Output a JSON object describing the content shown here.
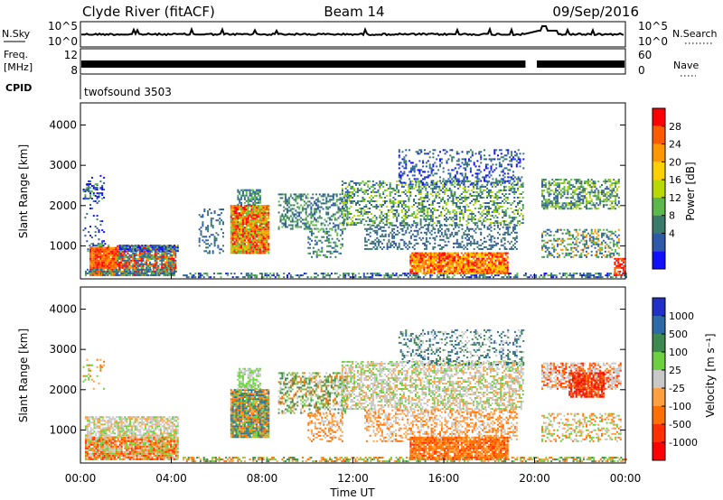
{
  "header": {
    "station": "Clyde River (fitACF)",
    "beam": "Beam 14",
    "date": "09/Sep/2016"
  },
  "top_panels": {
    "nsky_label": "N.Sky",
    "nsky_ticks": [
      "10^5",
      "10^0"
    ],
    "nsearch_label": "N.Search",
    "nsearch_ticks": [
      "10^5",
      "10^0"
    ],
    "freq_label": "Freq.",
    "freq_unit": "[MHz]",
    "freq_ticks": [
      "12",
      "8"
    ],
    "nave_label": "Nave",
    "nave_ticks": [
      "60",
      "0"
    ],
    "cpid_label": "CPID",
    "cpid_value": "twofsound 3503"
  },
  "chart_data": [
    {
      "type": "heatmap",
      "title": "",
      "xlabel": "",
      "ylabel": "Slant Range [km]",
      "x_range_hours": [
        0,
        24
      ],
      "ylim": [
        180,
        4550
      ],
      "yticks": [
        1000,
        2000,
        3000,
        4000
      ],
      "colorbar": {
        "label": "Power [dB]",
        "ticks": [
          "28",
          "24",
          "20",
          "16",
          "12",
          "8",
          "4"
        ],
        "colors": [
          "#ff0000",
          "#ff5a00",
          "#ff9800",
          "#ffd000",
          "#b8d800",
          "#5cb84a",
          "#3a7a6a",
          "#2c5aa8",
          "#1010ff"
        ]
      }
    },
    {
      "type": "heatmap",
      "title": "",
      "xlabel": "Time UT",
      "ylabel": "Slant Range [km]",
      "x_range_hours": [
        0,
        24
      ],
      "xticks": [
        "00:00",
        "04:00",
        "08:00",
        "12:00",
        "16:00",
        "20:00",
        "00:00"
      ],
      "ylim": [
        180,
        4550
      ],
      "yticks": [
        1000,
        2000,
        3000,
        4000
      ],
      "colorbar": {
        "label": "Velocity [m s⁻¹]",
        "ticks": [
          "1000",
          "500",
          "100",
          "25",
          "-25",
          "-100",
          "-500",
          "-1000"
        ],
        "colors": [
          "#2030c8",
          "#2d6aa8",
          "#3c8a50",
          "#6cd040",
          "#c8c8c8",
          "#ffa040",
          "#ff7000",
          "#ff3000",
          "#ff0000"
        ]
      }
    }
  ],
  "scatter_patches": {
    "power": [
      {
        "t": [
          0.1,
          1.0
        ],
        "r": [
          1050,
          2750
        ],
        "dens": 0.1,
        "c": [
          "#2c5aa8",
          "#1010ff",
          "#3a7a6a"
        ]
      },
      {
        "t": [
          0.1,
          1.0
        ],
        "r": [
          2150,
          2550
        ],
        "dens": 0.35,
        "c": [
          "#2c5aa8",
          "#5cb84a",
          "#1010ff"
        ]
      },
      {
        "t": [
          0.3,
          1.2
        ],
        "r": [
          850,
          1050
        ],
        "dens": 0.55,
        "c": [
          "#2c5aa8",
          "#1010ff",
          "#5cb84a"
        ]
      },
      {
        "t": [
          0.4,
          1.6
        ],
        "r": [
          250,
          950
        ],
        "dens": 0.95,
        "c": [
          "#ff0000",
          "#ff5a00",
          "#ff9800",
          "#ff5a00"
        ]
      },
      {
        "t": [
          1.6,
          4.2
        ],
        "r": [
          250,
          1000
        ],
        "dens": 0.85,
        "c": [
          "#ff9800",
          "#ff5a00",
          "#5cb84a",
          "#3a7a6a",
          "#ff0000",
          "#2c5aa8"
        ]
      },
      {
        "t": [
          1.7,
          4.3
        ],
        "r": [
          850,
          1000
        ],
        "dens": 0.75,
        "c": [
          "#2c5aa8",
          "#5cb84a",
          "#1010ff"
        ]
      },
      {
        "t": [
          0.2,
          4.2
        ],
        "r": [
          250,
          420
        ],
        "dens": 0.55,
        "c": [
          "#5cb84a",
          "#3a7a6a",
          "#2c5aa8"
        ]
      },
      {
        "t": [
          6.6,
          8.3
        ],
        "r": [
          800,
          2000
        ],
        "dens": 0.95,
        "c": [
          "#ff0000",
          "#ff5a00",
          "#ff9800",
          "#b8d800",
          "#5cb84a"
        ]
      },
      {
        "t": [
          6.9,
          7.9
        ],
        "r": [
          2000,
          2400
        ],
        "dens": 0.7,
        "c": [
          "#5cb84a",
          "#3a7a6a",
          "#2c5aa8"
        ]
      },
      {
        "t": [
          5.2,
          6.3
        ],
        "r": [
          800,
          1900
        ],
        "dens": 0.25,
        "c": [
          "#2c5aa8",
          "#3a7a6a"
        ]
      },
      {
        "t": [
          4.5,
          24.0
        ],
        "r": [
          200,
          320
        ],
        "dens": 0.45,
        "c": [
          "#2c5aa8",
          "#3a7a6a",
          "#1010ff",
          "#5cb84a"
        ]
      },
      {
        "t": [
          8.7,
          11.7
        ],
        "r": [
          1400,
          2300
        ],
        "dens": 0.45,
        "c": [
          "#3a7a6a",
          "#5cb84a",
          "#2c5aa8"
        ]
      },
      {
        "t": [
          10.0,
          11.5
        ],
        "r": [
          700,
          1400
        ],
        "dens": 0.35,
        "c": [
          "#2c5aa8",
          "#3a7a6a",
          "#5cb84a"
        ]
      },
      {
        "t": [
          11.5,
          19.5
        ],
        "r": [
          1500,
          2600
        ],
        "dens": 0.4,
        "c": [
          "#2c5aa8",
          "#3a7a6a",
          "#5cb84a",
          "#b8d800"
        ]
      },
      {
        "t": [
          14.0,
          19.5
        ],
        "r": [
          2500,
          3400
        ],
        "dens": 0.28,
        "c": [
          "#2c5aa8",
          "#1010ff",
          "#3a7a6a"
        ]
      },
      {
        "t": [
          12.5,
          19.2
        ],
        "r": [
          900,
          1500
        ],
        "dens": 0.35,
        "c": [
          "#2c5aa8",
          "#3a7a6a"
        ]
      },
      {
        "t": [
          14.5,
          18.8
        ],
        "r": [
          300,
          800
        ],
        "dens": 0.9,
        "c": [
          "#ff5a00",
          "#ff0000",
          "#ff9800",
          "#ffd000"
        ]
      },
      {
        "t": [
          20.3,
          23.7
        ],
        "r": [
          1900,
          2650
        ],
        "dens": 0.55,
        "c": [
          "#2c5aa8",
          "#5cb84a",
          "#3a7a6a",
          "#b8d800"
        ]
      },
      {
        "t": [
          20.3,
          23.7
        ],
        "r": [
          700,
          1400
        ],
        "dens": 0.4,
        "c": [
          "#2c5aa8",
          "#3a7a6a",
          "#5cb84a",
          "#ff9800"
        ]
      },
      {
        "t": [
          23.5,
          24.0
        ],
        "r": [
          250,
          700
        ],
        "dens": 0.6,
        "c": [
          "#ff0000",
          "#ff5a00"
        ]
      }
    ],
    "velocity": [
      {
        "t": [
          0.1,
          1.0
        ],
        "r": [
          2000,
          2750
        ],
        "dens": 0.12,
        "c": [
          "#ff7000",
          "#ffa040",
          "#6cd040"
        ]
      },
      {
        "t": [
          0.2,
          4.3
        ],
        "r": [
          800,
          1300
        ],
        "dens": 0.7,
        "c": [
          "#c8c8c8",
          "#c8c8c8",
          "#ffa040",
          "#6cd040"
        ]
      },
      {
        "t": [
          0.2,
          4.3
        ],
        "r": [
          250,
          800
        ],
        "dens": 0.95,
        "c": [
          "#ffa040",
          "#ff7000",
          "#c8c8c8",
          "#6cd040",
          "#ff3000"
        ]
      },
      {
        "t": [
          6.6,
          8.3
        ],
        "r": [
          800,
          2000
        ],
        "dens": 0.95,
        "c": [
          "#3c8a50",
          "#6cd040",
          "#ff7000",
          "#ffa040",
          "#2d6aa8"
        ]
      },
      {
        "t": [
          6.9,
          7.9
        ],
        "r": [
          2000,
          2500
        ],
        "dens": 0.7,
        "c": [
          "#c8c8c8",
          "#6cd040"
        ]
      },
      {
        "t": [
          4.5,
          24.0
        ],
        "r": [
          200,
          330
        ],
        "dens": 0.5,
        "c": [
          "#6cd040",
          "#3c8a50",
          "#ffa040",
          "#ff7000"
        ]
      },
      {
        "t": [
          8.7,
          11.7
        ],
        "r": [
          1400,
          2400
        ],
        "dens": 0.5,
        "c": [
          "#6cd040",
          "#3c8a50",
          "#ff7000",
          "#c8c8c8"
        ]
      },
      {
        "t": [
          10.0,
          11.5
        ],
        "r": [
          700,
          1400
        ],
        "dens": 0.4,
        "c": [
          "#ff7000",
          "#ffa040",
          "#c8c8c8"
        ]
      },
      {
        "t": [
          11.5,
          19.5
        ],
        "r": [
          1500,
          2700
        ],
        "dens": 0.55,
        "c": [
          "#c8c8c8",
          "#c8c8c8",
          "#ffa040",
          "#6cd040"
        ]
      },
      {
        "t": [
          14.0,
          19.5
        ],
        "r": [
          2600,
          3500
        ],
        "dens": 0.3,
        "c": [
          "#c8c8c8",
          "#2d6aa8",
          "#3c8a50"
        ]
      },
      {
        "t": [
          12.5,
          19.2
        ],
        "r": [
          700,
          1500
        ],
        "dens": 0.45,
        "c": [
          "#ffa040",
          "#ff7000",
          "#c8c8c8"
        ]
      },
      {
        "t": [
          14.5,
          18.8
        ],
        "r": [
          250,
          800
        ],
        "dens": 0.9,
        "c": [
          "#ff7000",
          "#ffa040",
          "#ff7000",
          "#ff3000"
        ]
      },
      {
        "t": [
          20.3,
          23.8
        ],
        "r": [
          2000,
          2650
        ],
        "dens": 0.6,
        "c": [
          "#c8c8c8",
          "#c8c8c8",
          "#ff3000",
          "#ff7000"
        ]
      },
      {
        "t": [
          21.5,
          23.0
        ],
        "r": [
          1800,
          2400
        ],
        "dens": 0.8,
        "c": [
          "#ff0000",
          "#ff3000",
          "#ff7000"
        ]
      },
      {
        "t": [
          20.3,
          23.8
        ],
        "r": [
          700,
          1400
        ],
        "dens": 0.4,
        "c": [
          "#ff7000",
          "#6cd040",
          "#ffa040",
          "#c8c8c8"
        ]
      }
    ]
  }
}
